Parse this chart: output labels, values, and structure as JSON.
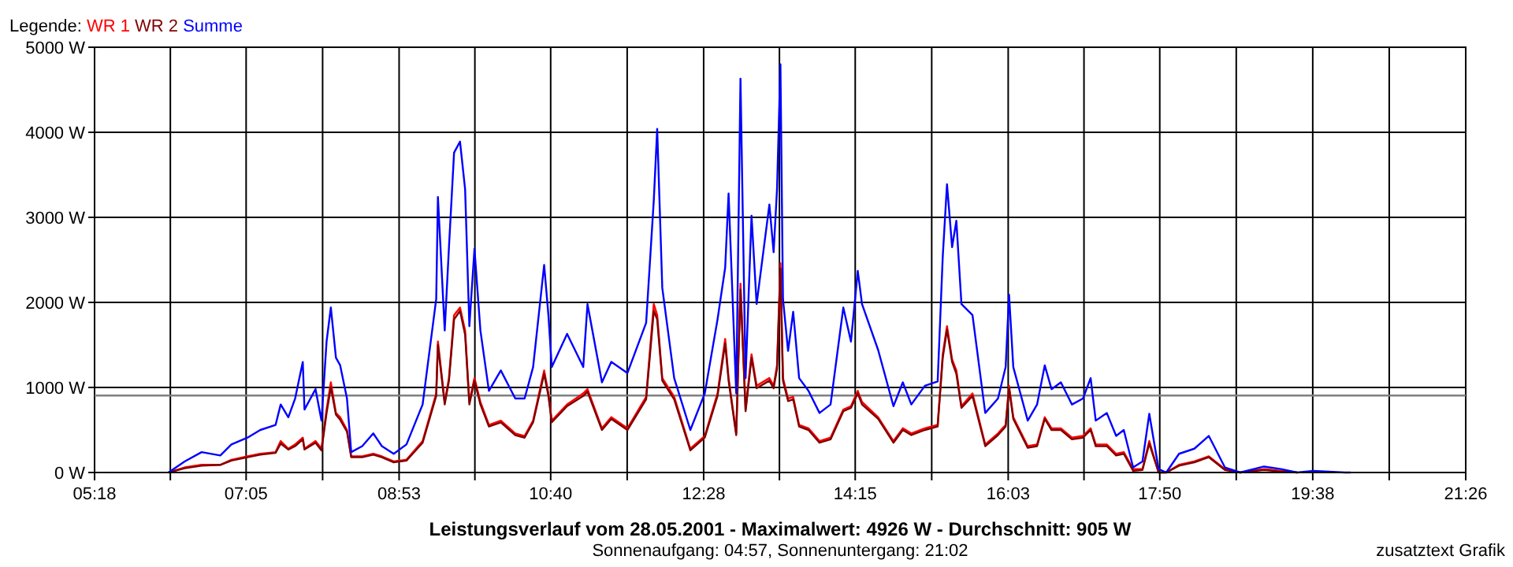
{
  "chart_data": {
    "type": "line",
    "title": "Leistungsverlauf vom 28.05.2001 - Maximalwert: 4926 W - Durchschnitt: 905 W",
    "subtitle": "Sonnenaufgang: 04:57, Sonnenuntergang: 21:02",
    "legend_title": "Legende:",
    "annotations": [
      "zusatztext Grafik"
    ],
    "x": [
      6.17,
      6.36,
      6.56,
      6.78,
      6.91,
      7.1,
      7.25,
      7.43,
      7.49,
      7.58,
      7.66,
      7.75,
      7.77,
      7.9,
      7.97,
      8.03,
      8.08,
      8.14,
      8.19,
      8.27,
      8.32,
      8.45,
      8.58,
      8.68,
      8.82,
      8.97,
      9.16,
      9.32,
      9.34,
      9.42,
      9.47,
      9.53,
      9.6,
      9.66,
      9.71,
      9.77,
      9.84,
      9.94,
      10.08,
      10.25,
      10.36,
      10.46,
      10.59,
      10.64,
      10.68,
      10.86,
      11.05,
      11.1,
      11.27,
      11.38,
      11.57,
      11.79,
      11.88,
      11.92,
      11.98,
      12.12,
      12.31,
      12.48,
      12.63,
      12.72,
      12.76,
      12.85,
      12.9,
      12.96,
      13.03,
      13.09,
      13.24,
      13.29,
      13.33,
      13.37,
      13.4,
      13.46,
      13.52,
      13.59,
      13.7,
      13.83,
      13.96,
      14.11,
      14.2,
      14.28,
      14.33,
      14.52,
      14.7,
      14.81,
      14.91,
      15.07,
      15.22,
      15.28,
      15.33,
      15.39,
      15.44,
      15.5,
      15.63,
      15.78,
      15.93,
      16.02,
      16.06,
      16.11,
      16.28,
      16.39,
      16.48,
      16.56,
      16.67,
      16.8,
      16.93,
      17.02,
      17.08,
      17.21,
      17.32,
      17.41,
      17.52,
      17.63,
      17.71,
      17.82,
      17.91,
      18.06,
      18.24,
      18.41,
      18.6,
      18.78,
      19.06,
      19.26,
      19.45,
      19.64,
      20.01,
      20.08
    ],
    "series": [
      {
        "name": "WR 1",
        "color": "#ff0000",
        "values": [
          0,
          60,
          90,
          90,
          150,
          190,
          220,
          240,
          370,
          280,
          330,
          410,
          280,
          370,
          280,
          740,
          1060,
          700,
          650,
          500,
          190,
          190,
          220,
          190,
          130,
          150,
          370,
          930,
          1540,
          830,
          1110,
          1850,
          1940,
          1670,
          830,
          1110,
          830,
          560,
          610,
          460,
          430,
          610,
          1200,
          930,
          610,
          800,
          930,
          980,
          520,
          650,
          520,
          890,
          1980,
          1850,
          1110,
          890,
          280,
          430,
          930,
          1570,
          1110,
          460,
          2220,
          740,
          1390,
          1020,
          1110,
          1020,
          1260,
          2460,
          1110,
          870,
          890,
          560,
          520,
          370,
          410,
          740,
          780,
          960,
          830,
          650,
          370,
          520,
          460,
          520,
          560,
          1390,
          1720,
          1330,
          1200,
          780,
          930,
          330,
          460,
          560,
          1020,
          650,
          310,
          330,
          650,
          520,
          520,
          410,
          430,
          520,
          330,
          330,
          220,
          240,
          40,
          40,
          370,
          0,
          0,
          90,
          130,
          190,
          40,
          0,
          40,
          20,
          0,
          null,
          null,
          null
        ]
      },
      {
        "name": "WR 2",
        "color": "#800000",
        "values": [
          0,
          50,
          80,
          90,
          140,
          180,
          210,
          230,
          340,
          270,
          310,
          390,
          270,
          350,
          260,
          700,
          1000,
          680,
          620,
          480,
          180,
          180,
          210,
          180,
          120,
          140,
          350,
          900,
          1500,
          800,
          1080,
          1800,
          1900,
          1620,
          800,
          1080,
          800,
          540,
          590,
          440,
          410,
          590,
          1160,
          900,
          590,
          780,
          900,
          950,
          500,
          630,
          500,
          860,
          1900,
          1800,
          1080,
          860,
          260,
          410,
          900,
          1520,
          1080,
          440,
          2150,
          720,
          1350,
          990,
          1080,
          990,
          1220,
          2400,
          1080,
          840,
          860,
          540,
          500,
          350,
          390,
          720,
          760,
          930,
          800,
          630,
          350,
          500,
          440,
          500,
          540,
          1350,
          1680,
          1300,
          1160,
          760,
          900,
          310,
          440,
          540,
          990,
          630,
          290,
          310,
          630,
          500,
          500,
          390,
          410,
          500,
          310,
          310,
          200,
          220,
          20,
          30,
          340,
          0,
          0,
          80,
          120,
          180,
          30,
          0,
          30,
          10,
          0,
          null,
          null,
          null
        ]
      },
      {
        "name": "Summe",
        "color": "#0000ff",
        "values": [
          0,
          130,
          240,
          200,
          330,
          410,
          500,
          560,
          800,
          650,
          870,
          1300,
          740,
          980,
          610,
          1540,
          1940,
          1350,
          1260,
          870,
          240,
          310,
          460,
          310,
          220,
          330,
          800,
          2040,
          3240,
          1670,
          2650,
          3760,
          3890,
          3330,
          1720,
          2630,
          1670,
          960,
          1200,
          870,
          870,
          1240,
          2440,
          1850,
          1240,
          1630,
          1240,
          1980,
          1060,
          1300,
          1170,
          1760,
          3200,
          4040,
          2170,
          1110,
          500,
          930,
          1800,
          2410,
          3280,
          930,
          4630,
          1110,
          3020,
          1980,
          3150,
          2590,
          3330,
          4800,
          2040,
          1430,
          1890,
          1110,
          960,
          700,
          800,
          1940,
          1540,
          2370,
          1980,
          1440,
          780,
          1060,
          800,
          1020,
          1070,
          2540,
          3390,
          2650,
          2960,
          1980,
          1850,
          700,
          870,
          1240,
          2090,
          1240,
          610,
          800,
          1260,
          980,
          1060,
          800,
          870,
          1110,
          610,
          700,
          430,
          500,
          60,
          130,
          690,
          40,
          0,
          220,
          280,
          430,
          60,
          0,
          70,
          40,
          0,
          20,
          0,
          0
        ]
      }
    ],
    "xlim": [
      5.3,
      21.4333
    ],
    "xticks": [
      {
        "value": 5.3,
        "label": "05:18"
      },
      {
        "value": 6.1917,
        "label": null
      },
      {
        "value": 7.0833,
        "label": "07:05"
      },
      {
        "value": 7.9833,
        "label": null
      },
      {
        "value": 8.8833,
        "label": "08:53"
      },
      {
        "value": 9.775,
        "label": null
      },
      {
        "value": 10.6667,
        "label": "10:40"
      },
      {
        "value": 11.5667,
        "label": null
      },
      {
        "value": 12.4667,
        "label": "12:28"
      },
      {
        "value": 13.3583,
        "label": null
      },
      {
        "value": 14.25,
        "label": "14:15"
      },
      {
        "value": 15.15,
        "label": null
      },
      {
        "value": 16.05,
        "label": "16:03"
      },
      {
        "value": 16.9417,
        "label": null
      },
      {
        "value": 17.8333,
        "label": "17:50"
      },
      {
        "value": 18.7333,
        "label": null
      },
      {
        "value": 19.6333,
        "label": "19:38"
      },
      {
        "value": 20.5333,
        "label": null
      },
      {
        "value": 21.4333,
        "label": "21:26"
      }
    ],
    "ylim": [
      0,
      5000
    ],
    "yticks": [
      {
        "value": 0,
        "label": "0 W"
      },
      {
        "value": 1000,
        "label": "1000 W"
      },
      {
        "value": 2000,
        "label": "2000 W"
      },
      {
        "value": 3000,
        "label": "3000 W"
      },
      {
        "value": 4000,
        "label": "4000 W"
      },
      {
        "value": 5000,
        "label": "5000 W"
      }
    ],
    "ref_lines": [
      {
        "axis": "y",
        "value": 905,
        "color": "#808080"
      }
    ],
    "grid": true,
    "legend": "top left",
    "marker": "none",
    "line_style": "solid"
  }
}
